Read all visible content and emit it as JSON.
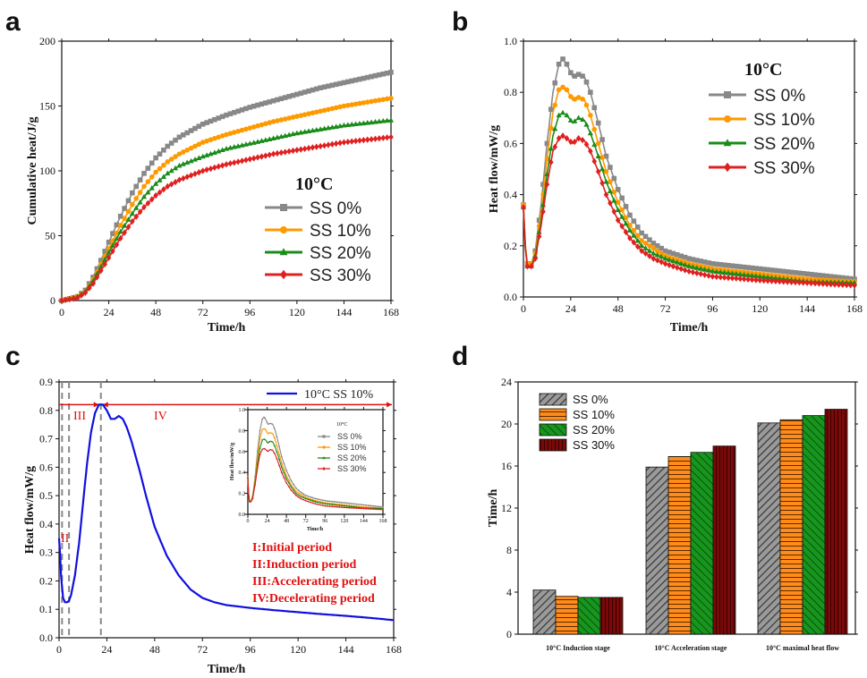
{
  "panel_labels": [
    "a",
    "b",
    "c",
    "d"
  ],
  "colors": {
    "SS 0%": "#888888",
    "SS 10%": "#ff9900",
    "SS 20%": "#1a8c1a",
    "SS 30%": "#e02020",
    "blue": "#1010e0",
    "red_text": "#e01010",
    "bar_0": "#8c8c8c",
    "bar_10": "#ff8c1a",
    "bar_20": "#17961e",
    "bar_30": "#7a0a0a"
  },
  "chart_data": [
    {
      "panel": "a",
      "type": "line",
      "title": "",
      "legend_title": "10°C",
      "xlabel": "Time/h",
      "ylabel": "Cumulative heat/J/g",
      "xlim": [
        0,
        168
      ],
      "ylim": [
        0,
        200
      ],
      "xticks": [
        0,
        24,
        48,
        72,
        96,
        120,
        144,
        168
      ],
      "yticks": [
        0,
        50,
        100,
        150,
        200
      ],
      "legend": [
        "SS 0%",
        "SS 10%",
        "SS 20%",
        "SS 30%"
      ],
      "series": [
        {
          "name": "SS 0%",
          "marker": "square",
          "x": [
            0,
            8,
            12,
            16,
            20,
            24,
            30,
            36,
            42,
            48,
            54,
            60,
            72,
            84,
            96,
            108,
            120,
            132,
            144,
            156,
            168
          ],
          "y": [
            0,
            3,
            8,
            18,
            31,
            45,
            65,
            83,
            98,
            110,
            119,
            126,
            136,
            143,
            149,
            154,
            159,
            164,
            168,
            172,
            176
          ]
        },
        {
          "name": "SS 10%",
          "marker": "circle",
          "x": [
            0,
            8,
            12,
            16,
            20,
            24,
            30,
            36,
            42,
            48,
            54,
            60,
            72,
            84,
            96,
            108,
            120,
            132,
            144,
            156,
            168
          ],
          "y": [
            0,
            3,
            7,
            16,
            28,
            40,
            58,
            74,
            88,
            99,
            107,
            113,
            122,
            128,
            133,
            138,
            142,
            146,
            150,
            153,
            156
          ]
        },
        {
          "name": "SS 20%",
          "marker": "triangle",
          "x": [
            0,
            8,
            12,
            16,
            20,
            24,
            30,
            36,
            42,
            48,
            54,
            60,
            72,
            84,
            96,
            108,
            120,
            132,
            144,
            156,
            168
          ],
          "y": [
            0,
            3,
            7,
            15,
            26,
            37,
            53,
            67,
            80,
            90,
            98,
            104,
            111,
            117,
            121,
            125,
            129,
            132,
            135,
            137,
            139
          ]
        },
        {
          "name": "SS 30%",
          "marker": "diamond",
          "x": [
            0,
            8,
            12,
            16,
            20,
            24,
            30,
            36,
            42,
            48,
            54,
            60,
            72,
            84,
            96,
            108,
            120,
            132,
            144,
            156,
            168
          ],
          "y": [
            0,
            2,
            6,
            13,
            23,
            33,
            48,
            61,
            72,
            81,
            88,
            93,
            100,
            105,
            109,
            113,
            116,
            119,
            122,
            124,
            126
          ]
        }
      ]
    },
    {
      "panel": "b",
      "type": "line",
      "title": "",
      "legend_title": "10°C",
      "xlabel": "Time/h",
      "ylabel": "Heat flow/mW/g",
      "xlim": [
        0,
        168
      ],
      "ylim": [
        0,
        1.0
      ],
      "xticks": [
        0,
        24,
        48,
        72,
        96,
        120,
        144,
        168
      ],
      "yticks": [
        0.0,
        0.2,
        0.4,
        0.6,
        0.8,
        1.0
      ],
      "legend": [
        "SS 0%",
        "SS 10%",
        "SS 20%",
        "SS 30%"
      ],
      "series": [
        {
          "name": "SS 0%",
          "marker": "square",
          "x": [
            0,
            1,
            2,
            4,
            6,
            9,
            12,
            15,
            18,
            20,
            22,
            25,
            28,
            31,
            34,
            38,
            42,
            48,
            54,
            60,
            66,
            72,
            84,
            96,
            120,
            144,
            168
          ],
          "y": [
            0.36,
            0.2,
            0.13,
            0.13,
            0.18,
            0.36,
            0.6,
            0.8,
            0.91,
            0.93,
            0.91,
            0.86,
            0.87,
            0.86,
            0.8,
            0.68,
            0.55,
            0.42,
            0.32,
            0.25,
            0.21,
            0.18,
            0.15,
            0.13,
            0.11,
            0.09,
            0.07
          ]
        },
        {
          "name": "SS 10%",
          "marker": "circle",
          "x": [
            0,
            1,
            2,
            4,
            6,
            9,
            12,
            15,
            18,
            20,
            22,
            25,
            28,
            31,
            34,
            38,
            42,
            48,
            54,
            60,
            66,
            72,
            84,
            96,
            120,
            144,
            168
          ],
          "y": [
            0.36,
            0.2,
            0.13,
            0.13,
            0.17,
            0.33,
            0.54,
            0.72,
            0.81,
            0.82,
            0.81,
            0.77,
            0.78,
            0.77,
            0.71,
            0.6,
            0.49,
            0.37,
            0.28,
            0.22,
            0.19,
            0.16,
            0.13,
            0.11,
            0.09,
            0.07,
            0.06
          ]
        },
        {
          "name": "SS 20%",
          "marker": "triangle",
          "x": [
            0,
            1,
            2,
            4,
            6,
            9,
            12,
            15,
            18,
            20,
            22,
            25,
            28,
            31,
            34,
            38,
            42,
            48,
            54,
            60,
            66,
            72,
            84,
            96,
            120,
            144,
            168
          ],
          "y": [
            0.35,
            0.19,
            0.12,
            0.12,
            0.16,
            0.3,
            0.48,
            0.63,
            0.71,
            0.72,
            0.71,
            0.68,
            0.7,
            0.69,
            0.64,
            0.55,
            0.45,
            0.34,
            0.26,
            0.2,
            0.17,
            0.15,
            0.12,
            0.1,
            0.08,
            0.06,
            0.055
          ]
        },
        {
          "name": "SS 30%",
          "marker": "diamond",
          "x": [
            0,
            1,
            2,
            4,
            6,
            9,
            12,
            15,
            18,
            20,
            22,
            25,
            28,
            31,
            34,
            38,
            42,
            48,
            54,
            60,
            66,
            72,
            84,
            96,
            120,
            144,
            168
          ],
          "y": [
            0.35,
            0.19,
            0.12,
            0.12,
            0.15,
            0.28,
            0.44,
            0.57,
            0.62,
            0.63,
            0.62,
            0.6,
            0.62,
            0.61,
            0.57,
            0.49,
            0.4,
            0.3,
            0.23,
            0.18,
            0.15,
            0.13,
            0.1,
            0.08,
            0.065,
            0.055,
            0.045
          ]
        }
      ]
    },
    {
      "panel": "c",
      "type": "line",
      "title": "",
      "xlabel": "Time/h",
      "ylabel": "Heat flow/mW/g",
      "xlim": [
        0,
        168
      ],
      "ylim": [
        0,
        0.9
      ],
      "xticks": [
        0,
        24,
        48,
        72,
        96,
        120,
        144,
        168
      ],
      "yticks": [
        0.0,
        0.1,
        0.2,
        0.3,
        0.4,
        0.5,
        0.6,
        0.7,
        0.8,
        0.9
      ],
      "legend": [
        "10°C SS 10%"
      ],
      "series": [
        {
          "name": "10°C SS 10%",
          "x": [
            0,
            0.5,
            1,
            2,
            3,
            4,
            5,
            6,
            8,
            10,
            12,
            14,
            16,
            18,
            20,
            22,
            24,
            26,
            28,
            30,
            32,
            34,
            36,
            40,
            44,
            48,
            54,
            60,
            66,
            72,
            78,
            84,
            96,
            108,
            120,
            132,
            144,
            156,
            168
          ],
          "y": [
            0.35,
            0.3,
            0.22,
            0.14,
            0.125,
            0.125,
            0.13,
            0.15,
            0.22,
            0.33,
            0.47,
            0.61,
            0.72,
            0.79,
            0.82,
            0.82,
            0.8,
            0.77,
            0.77,
            0.78,
            0.77,
            0.74,
            0.7,
            0.6,
            0.49,
            0.39,
            0.29,
            0.22,
            0.17,
            0.14,
            0.125,
            0.115,
            0.105,
            0.097,
            0.09,
            0.083,
            0.077,
            0.07,
            0.062
          ]
        }
      ],
      "period_lines_x": [
        1.5,
        5,
        21
      ],
      "peak_line_y": 0.82,
      "region_labels": [
        "I",
        "II",
        "III",
        "IV"
      ],
      "annotations": [
        "I:Initial period",
        "II:Induction period",
        "III:Accelerating period",
        "IV:Decelerating period"
      ],
      "inset": {
        "legend_title": "10°C",
        "xlabel": "Time/h",
        "ylabel": "Heat flow/mW/g",
        "xticks": [
          0,
          24,
          48,
          72,
          96,
          120,
          144,
          168
        ],
        "yticks": [
          0.0,
          0.2,
          0.4,
          0.6,
          0.8,
          1.0
        ],
        "legend": [
          "SS 0%",
          "SS 10%",
          "SS 20%",
          "SS 30%"
        ]
      }
    },
    {
      "panel": "d",
      "type": "bar",
      "title": "",
      "xlabel": "",
      "ylabel": "Time/h",
      "ylim": [
        0,
        24
      ],
      "yticks": [
        0,
        4,
        8,
        12,
        16,
        20,
        24
      ],
      "categories": [
        "10°C Induction stage",
        "10°C Acceleration stage",
        "10°C  maximal heat flow"
      ],
      "series": [
        {
          "name": "SS 0%",
          "values": [
            4.2,
            15.9,
            20.1
          ]
        },
        {
          "name": "SS 10%",
          "values": [
            3.6,
            16.9,
            20.4
          ]
        },
        {
          "name": "SS 20%",
          "values": [
            3.5,
            17.3,
            20.8
          ]
        },
        {
          "name": "SS 30%",
          "values": [
            3.5,
            17.9,
            21.4
          ]
        }
      ]
    }
  ]
}
